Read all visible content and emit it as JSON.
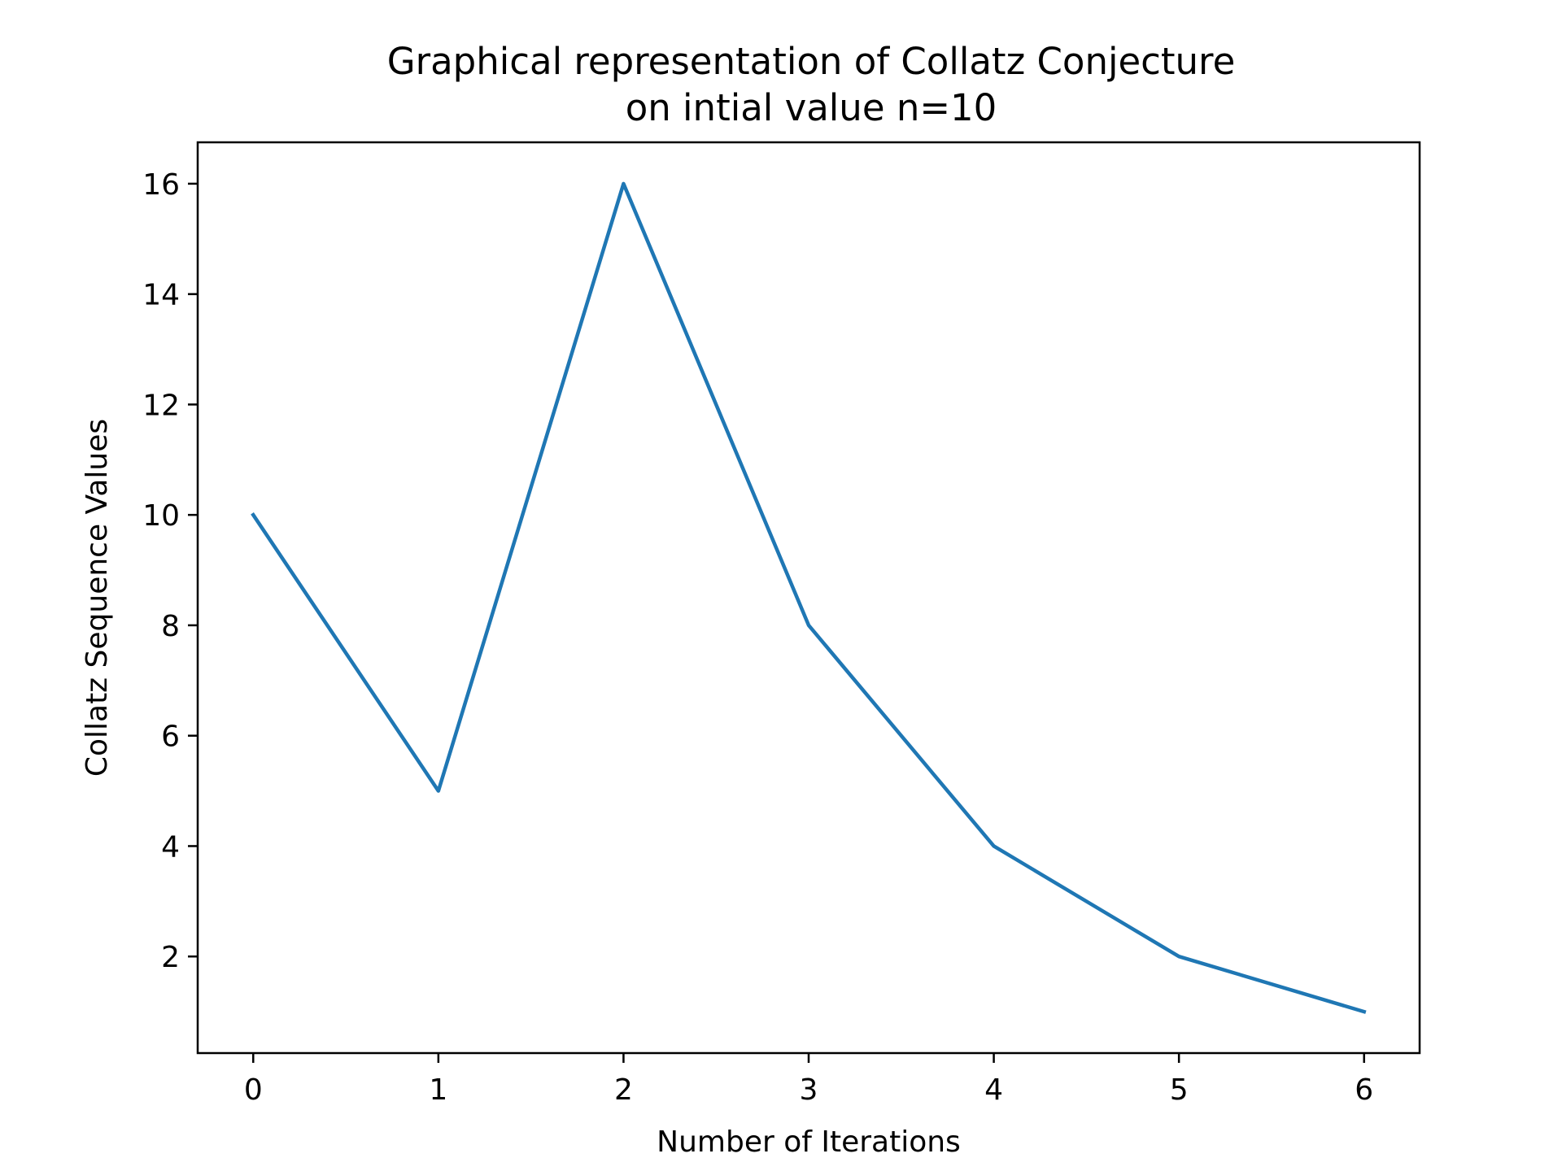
{
  "chart_data": {
    "type": "line",
    "title": "Graphical representation of Collatz Conjecture",
    "subtitle": "on intial value n=10",
    "xlabel": "Number of Iterations",
    "ylabel": "Collatz Sequence Values",
    "x": [
      0,
      1,
      2,
      3,
      4,
      5,
      6
    ],
    "series": [
      {
        "values": [
          10,
          5,
          16,
          8,
          4,
          2,
          1
        ],
        "color": "#1f77b4"
      }
    ],
    "xlim": [
      -0.3,
      6.3
    ],
    "ylim": [
      0.25,
      16.75
    ],
    "xticks": [
      "0",
      "1",
      "2",
      "3",
      "4",
      "5",
      "6"
    ],
    "yticks": [
      "2",
      "4",
      "6",
      "8",
      "10",
      "12",
      "14",
      "16"
    ],
    "grid": false,
    "legend": "none"
  }
}
